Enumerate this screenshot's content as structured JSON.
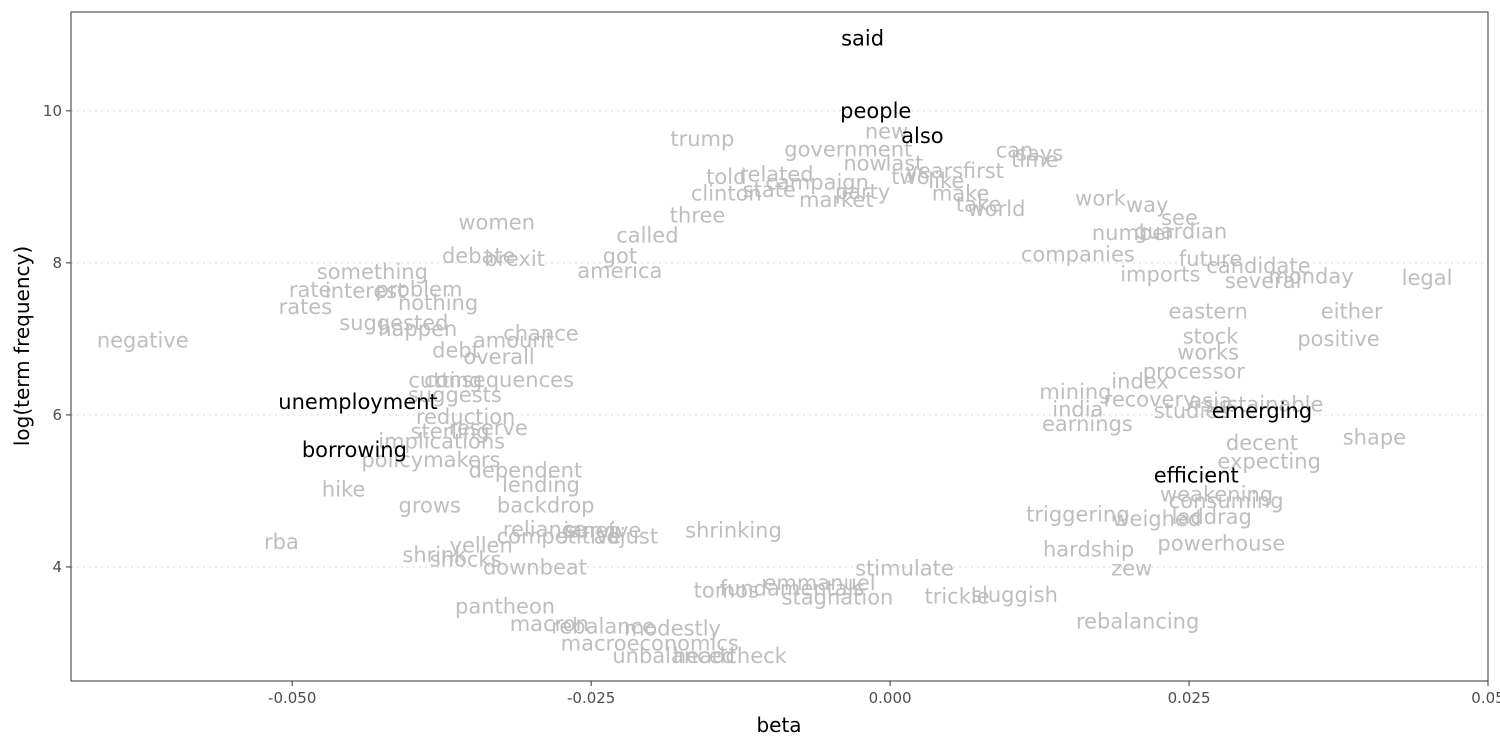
{
  "chart_data": {
    "type": "scatter",
    "title": "",
    "xlabel": "beta",
    "ylabel": "log(term frequency)",
    "xlim": [
      -0.0685,
      0.05
    ],
    "ylim": [
      2.5,
      11.3
    ],
    "x_ticks": [
      -0.05,
      -0.025,
      0.0,
      0.025,
      0.05
    ],
    "x_tick_labels": [
      "-0.050",
      "-0.025",
      "0.000",
      "0.025",
      "0.05"
    ],
    "y_ticks": [
      4,
      6,
      8,
      10
    ],
    "y_tick_labels": [
      "4",
      "6",
      "8",
      "10"
    ],
    "grid": "horizontal dotted",
    "colors": {
      "background_words": "#bebebe",
      "highlight_words": "#000000",
      "panel_border": "#333333"
    },
    "highlighted_points": [
      {
        "label": "said",
        "x": -0.0023,
        "y": 10.95
      },
      {
        "label": "people",
        "x": -0.0012,
        "y": 10.0
      },
      {
        "label": "also",
        "x": 0.0027,
        "y": 9.67
      },
      {
        "label": "unemployment",
        "x": -0.0445,
        "y": 6.17
      },
      {
        "label": "borrowing",
        "x": -0.0448,
        "y": 5.54
      },
      {
        "label": "emerging",
        "x": 0.0311,
        "y": 6.05
      },
      {
        "label": "efficient",
        "x": 0.0256,
        "y": 5.2
      }
    ],
    "background_points": [
      {
        "label": "trump",
        "x": -0.0157,
        "y": 9.63
      },
      {
        "label": "new",
        "x": -0.0003,
        "y": 9.73
      },
      {
        "label": "government",
        "x": -0.0035,
        "y": 9.49
      },
      {
        "label": "can",
        "x": 0.0104,
        "y": 9.48
      },
      {
        "label": "says",
        "x": 0.0125,
        "y": 9.44
      },
      {
        "label": "time",
        "x": 0.0121,
        "y": 9.35
      },
      {
        "label": "now",
        "x": -0.0021,
        "y": 9.31
      },
      {
        "label": "last",
        "x": 0.0012,
        "y": 9.31
      },
      {
        "label": "years",
        "x": 0.0037,
        "y": 9.21
      },
      {
        "label": "first",
        "x": 0.0078,
        "y": 9.21
      },
      {
        "label": "told",
        "x": -0.0137,
        "y": 9.13
      },
      {
        "label": "related",
        "x": -0.0095,
        "y": 9.16
      },
      {
        "label": "campaign",
        "x": -0.0061,
        "y": 9.06
      },
      {
        "label": "two",
        "x": 0.0017,
        "y": 9.13
      },
      {
        "label": "like",
        "x": 0.0047,
        "y": 9.08
      },
      {
        "label": "clinton",
        "x": -0.0137,
        "y": 8.91
      },
      {
        "label": "state",
        "x": -0.0101,
        "y": 8.96
      },
      {
        "label": "party",
        "x": -0.0023,
        "y": 8.93
      },
      {
        "label": "market",
        "x": -0.0045,
        "y": 8.83
      },
      {
        "label": "make",
        "x": 0.0059,
        "y": 8.91
      },
      {
        "label": "work",
        "x": 0.0176,
        "y": 8.85
      },
      {
        "label": "way",
        "x": 0.0215,
        "y": 8.76
      },
      {
        "label": "see",
        "x": 0.0242,
        "y": 8.59
      },
      {
        "label": "women",
        "x": -0.0329,
        "y": 8.53
      },
      {
        "label": "three",
        "x": -0.0161,
        "y": 8.62
      },
      {
        "label": "world",
        "x": 0.0089,
        "y": 8.71
      },
      {
        "label": "take",
        "x": 0.0074,
        "y": 8.77
      },
      {
        "label": "called",
        "x": -0.0203,
        "y": 8.36
      },
      {
        "label": "number",
        "x": 0.0203,
        "y": 8.39
      },
      {
        "label": "guardian",
        "x": 0.0243,
        "y": 8.41
      },
      {
        "label": "debt",
        "x": -0.0363,
        "y": 6.85
      },
      {
        "label": "brexit",
        "x": -0.0314,
        "y": 8.05
      },
      {
        "label": "debate",
        "x": -0.0344,
        "y": 8.09
      },
      {
        "label": "got",
        "x": -0.0226,
        "y": 8.09
      },
      {
        "label": "something",
        "x": -0.0433,
        "y": 7.88
      },
      {
        "label": "rate",
        "x": -0.0485,
        "y": 7.64
      },
      {
        "label": "interest",
        "x": -0.0439,
        "y": 7.63
      },
      {
        "label": "problem",
        "x": -0.0394,
        "y": 7.65
      },
      {
        "label": "rates",
        "x": -0.0489,
        "y": 7.42
      },
      {
        "label": "nothing",
        "x": -0.0378,
        "y": 7.47
      },
      {
        "label": "america",
        "x": -0.0226,
        "y": 7.89
      },
      {
        "label": "companies",
        "x": 0.0157,
        "y": 8.11
      },
      {
        "label": "future",
        "x": 0.0268,
        "y": 8.05
      },
      {
        "label": "candidate",
        "x": 0.0308,
        "y": 7.96
      },
      {
        "label": "monday",
        "x": 0.0352,
        "y": 7.82
      },
      {
        "label": "legal",
        "x": 0.0449,
        "y": 7.8
      },
      {
        "label": "several",
        "x": 0.0312,
        "y": 7.76
      },
      {
        "label": "imports",
        "x": 0.0226,
        "y": 7.85
      },
      {
        "label": "negative",
        "x": -0.0625,
        "y": 6.98
      },
      {
        "label": "suggested",
        "x": -0.0415,
        "y": 7.21
      },
      {
        "label": "happen",
        "x": -0.0395,
        "y": 7.13
      },
      {
        "label": "amount",
        "x": -0.0315,
        "y": 6.98
      },
      {
        "label": "chance",
        "x": -0.0292,
        "y": 7.07
      },
      {
        "label": "either",
        "x": 0.0386,
        "y": 7.36
      },
      {
        "label": "eastern",
        "x": 0.0266,
        "y": 7.36
      },
      {
        "label": "positive",
        "x": 0.0375,
        "y": 7.0
      },
      {
        "label": "works",
        "x": 0.0266,
        "y": 6.82
      },
      {
        "label": "stock",
        "x": 0.0268,
        "y": 7.03
      },
      {
        "label": "index",
        "x": 0.0209,
        "y": 6.44
      },
      {
        "label": "processor",
        "x": 0.0254,
        "y": 6.57
      },
      {
        "label": "overall",
        "x": -0.0327,
        "y": 6.76
      },
      {
        "label": "cutting",
        "x": -0.0372,
        "y": 6.45
      },
      {
        "label": "consequences",
        "x": -0.0327,
        "y": 6.46
      },
      {
        "label": "suggests",
        "x": -0.0364,
        "y": 6.26
      },
      {
        "label": "reduction",
        "x": -0.0355,
        "y": 5.97
      },
      {
        "label": "sterling",
        "x": -0.0368,
        "y": 5.78
      },
      {
        "label": "reserve",
        "x": -0.0336,
        "y": 5.83
      },
      {
        "label": "implications",
        "x": -0.0375,
        "y": 5.65
      },
      {
        "label": "policymakers",
        "x": -0.0384,
        "y": 5.41
      },
      {
        "label": "hike",
        "x": -0.0457,
        "y": 5.02
      },
      {
        "label": "grows",
        "x": -0.0385,
        "y": 4.81
      },
      {
        "label": "dependent",
        "x": -0.0305,
        "y": 5.27
      },
      {
        "label": "lending",
        "x": -0.0292,
        "y": 5.08
      },
      {
        "label": "backdrop",
        "x": -0.0288,
        "y": 4.81
      },
      {
        "label": "reliance",
        "x": -0.0289,
        "y": 4.49
      },
      {
        "label": "janet",
        "x": -0.0251,
        "y": 4.48
      },
      {
        "label": "survive",
        "x": -0.024,
        "y": 4.48
      },
      {
        "label": "competitive",
        "x": -0.0277,
        "y": 4.4
      },
      {
        "label": "adjust",
        "x": -0.0221,
        "y": 4.4
      },
      {
        "label": "shrinking",
        "x": -0.0131,
        "y": 4.48
      },
      {
        "label": "rba",
        "x": -0.0509,
        "y": 4.33
      },
      {
        "label": "yellen",
        "x": -0.0342,
        "y": 4.28
      },
      {
        "label": "shrink",
        "x": -0.0381,
        "y": 4.16
      },
      {
        "label": "shocks",
        "x": -0.0355,
        "y": 4.1
      },
      {
        "label": "downbeat",
        "x": -0.0297,
        "y": 3.99
      },
      {
        "label": "pantheon",
        "x": -0.0322,
        "y": 3.48
      },
      {
        "label": "macron",
        "x": -0.0285,
        "y": 3.25
      },
      {
        "label": "rebalance",
        "x": -0.024,
        "y": 3.22
      },
      {
        "label": "modestly",
        "x": -0.0182,
        "y": 3.19
      },
      {
        "label": "macroeconomics",
        "x": -0.0201,
        "y": 2.99
      },
      {
        "label": "unbalanced",
        "x": -0.0181,
        "y": 2.83
      },
      {
        "label": "headcheck",
        "x": -0.0134,
        "y": 2.83
      },
      {
        "label": "tomos",
        "x": -0.0137,
        "y": 3.69
      },
      {
        "label": "fundamentals",
        "x": -0.0082,
        "y": 3.72
      },
      {
        "label": "emmanuel",
        "x": -0.0059,
        "y": 3.79
      },
      {
        "label": "stagnation",
        "x": -0.0044,
        "y": 3.6
      },
      {
        "label": "trickle",
        "x": 0.0056,
        "y": 3.61
      },
      {
        "label": "sluggish",
        "x": 0.0104,
        "y": 3.63
      },
      {
        "label": "rebalancing",
        "x": 0.0207,
        "y": 3.28
      },
      {
        "label": "stimulate",
        "x": 0.0012,
        "y": 3.98
      },
      {
        "label": "zew",
        "x": 0.0202,
        "y": 3.98
      },
      {
        "label": "powerhouse",
        "x": 0.0277,
        "y": 4.31
      },
      {
        "label": "hardship",
        "x": 0.0166,
        "y": 4.23
      },
      {
        "label": "weighed",
        "x": 0.0223,
        "y": 4.63
      },
      {
        "label": "laddrag",
        "x": 0.0269,
        "y": 4.66
      },
      {
        "label": "consuming",
        "x": 0.0281,
        "y": 4.87
      },
      {
        "label": "weakening",
        "x": 0.0273,
        "y": 4.95
      },
      {
        "label": "expecting",
        "x": 0.0317,
        "y": 5.39
      },
      {
        "label": "shape",
        "x": 0.0405,
        "y": 5.7
      },
      {
        "label": "decent",
        "x": 0.0311,
        "y": 5.63
      },
      {
        "label": "sustainable",
        "x": 0.0312,
        "y": 6.14
      },
      {
        "label": "asia",
        "x": 0.0268,
        "y": 6.18
      },
      {
        "label": "studies",
        "x": 0.0252,
        "y": 6.05
      },
      {
        "label": "recovery",
        "x": 0.0217,
        "y": 6.2
      },
      {
        "label": "india",
        "x": 0.0157,
        "y": 6.07
      },
      {
        "label": "mining",
        "x": 0.0155,
        "y": 6.3
      },
      {
        "label": "earnings",
        "x": 0.0165,
        "y": 5.88
      },
      {
        "label": "triggering",
        "x": 0.0157,
        "y": 4.69
      }
    ]
  }
}
